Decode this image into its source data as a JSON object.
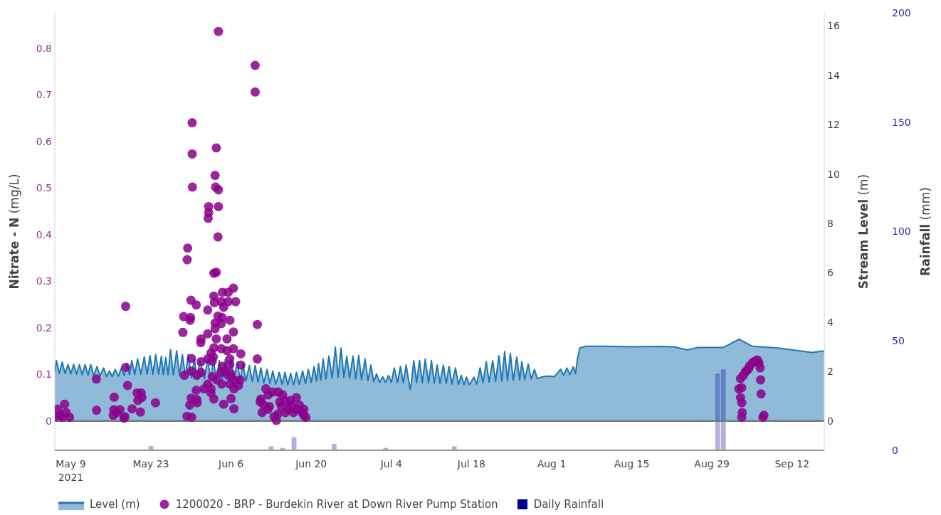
{
  "chart_data": {
    "type": "scatter",
    "ylabel": "Nitrate - N (mg/L)",
    "y2label": "Stream Level (m)",
    "y3label": "Rainfall (mm)",
    "xlim": [
      "2021-05-06T05:00",
      "2021-09-17T15:00"
    ],
    "xticks": [
      {
        "value": "2021-05-09",
        "label": "May 9\n2021"
      },
      {
        "value": "2021-05-23",
        "label": "May 23"
      },
      {
        "value": "2021-06-06",
        "label": "Jun 6"
      },
      {
        "value": "2021-06-20",
        "label": "Jun 20"
      },
      {
        "value": "2021-07-04",
        "label": "Jul 4"
      },
      {
        "value": "2021-07-18",
        "label": "Jul 18"
      },
      {
        "value": "2021-08-01",
        "label": "Aug 1"
      },
      {
        "value": "2021-08-15",
        "label": "Aug 15"
      },
      {
        "value": "2021-08-29",
        "label": "Aug 29"
      },
      {
        "value": "2021-09-12",
        "label": "Sep 12"
      }
    ],
    "ylim": [
      -0.063,
      0.876
    ],
    "yticks": [
      0,
      0.1,
      0.2,
      0.3,
      0.4,
      0.5,
      0.6,
      0.7,
      0.8
    ],
    "y2lim": [
      -1.18,
      16.52
    ],
    "y2ticks": [
      0,
      2,
      4,
      6,
      8,
      10,
      12,
      14,
      16
    ],
    "y3lim": [
      0,
      200
    ],
    "y3ticks": [
      0,
      50,
      100,
      150,
      200
    ],
    "legend": "bottom",
    "ref_lines": [
      {
        "axis": "y",
        "value": 0,
        "color": "#777777"
      }
    ],
    "series": [
      {
        "type": "area",
        "name": "Level (m)",
        "color": "#1f77b4",
        "axis": "y2",
        "x": [
          "2021-05-06T05:00",
          "2021-05-06T12:00",
          "2021-05-07T00:00",
          "2021-05-07T12:00",
          "2021-05-08T00:00",
          "2021-05-08T12:00",
          "2021-05-09T00:00",
          "2021-05-09T12:00",
          "2021-05-10T00:00",
          "2021-05-10T12:00",
          "2021-05-11T00:00",
          "2021-05-11T12:00",
          "2021-05-12T00:00",
          "2021-05-12T12:00",
          "2021-05-13T00:00",
          "2021-05-13T14:00",
          "2021-05-14T02:00",
          "2021-05-14T18:00",
          "2021-05-15T06:00",
          "2021-05-15T18:00",
          "2021-05-16T06:00",
          "2021-05-16T18:00",
          "2021-05-17T08:00",
          "2021-05-17T20:00",
          "2021-05-18T08:00",
          "2021-05-18T20:00",
          "2021-05-19T06:00",
          "2021-05-19T16:00",
          "2021-05-20T04:00",
          "2021-05-20T16:00",
          "2021-05-21T06:00",
          "2021-05-21T20:00",
          "2021-05-22T08:00",
          "2021-05-22T20:00",
          "2021-05-23T08:00",
          "2021-05-23T20:00",
          "2021-05-24T08:00",
          "2021-05-24T20:00",
          "2021-05-25T04:00",
          "2021-05-25T14:00",
          "2021-05-26T00:00",
          "2021-05-26T10:00",
          "2021-05-26T22:00",
          "2021-05-27T12:00",
          "2021-05-28T00:00",
          "2021-05-28T12:00",
          "2021-05-29T00:00",
          "2021-05-29T12:00",
          "2021-05-30T02:00",
          "2021-05-30T14:00",
          "2021-05-31T02:00",
          "2021-05-31T14:00",
          "2021-06-01T08:00",
          "2021-06-01T22:00",
          "2021-06-02T10:00",
          "2021-06-02T22:00",
          "2021-06-03T10:00",
          "2021-06-03T23:00",
          "2021-06-04T12:00",
          "2021-06-05T00:00",
          "2021-06-05T12:00",
          "2021-06-06T00:00",
          "2021-06-06T12:00",
          "2021-06-07T02:00",
          "2021-06-07T14:00",
          "2021-06-08T02:00",
          "2021-06-08T14:00",
          "2021-06-09T05:00",
          "2021-06-09T17:00",
          "2021-06-10T05:00",
          "2021-06-10T17:00",
          "2021-06-11T05:00",
          "2021-06-11T17:00",
          "2021-06-12T07:00",
          "2021-06-12T19:00",
          "2021-06-13T07:00",
          "2021-06-13T19:00",
          "2021-06-14T10:00",
          "2021-06-14T22:00",
          "2021-06-15T10:00",
          "2021-06-15T22:00",
          "2021-06-16T10:00",
          "2021-06-16T22:00",
          "2021-06-17T10:00",
          "2021-06-17T22:00",
          "2021-06-18T12:00",
          "2021-06-19T00:00",
          "2021-06-19T12:00",
          "2021-06-20T00:00",
          "2021-06-20T12:00",
          "2021-06-20T22:00",
          "2021-06-21T07:00",
          "2021-06-21T16:00",
          "2021-06-22T02:00",
          "2021-06-22T14:00",
          "2021-06-23T02:00",
          "2021-06-23T16:00",
          "2021-06-24T05:00",
          "2021-06-24T17:00",
          "2021-06-25T05:00",
          "2021-06-25T17:00",
          "2021-06-26T05:00",
          "2021-06-26T17:00",
          "2021-06-27T07:00",
          "2021-06-27T19:00",
          "2021-06-28T07:00",
          "2021-06-28T19:00",
          "2021-06-29T10:00",
          "2021-06-29T22:00",
          "2021-06-30T10:00",
          "2021-06-30T22:00",
          "2021-07-01T10:00",
          "2021-07-01T22:00",
          "2021-07-02T12:00",
          "2021-07-03T00:00",
          "2021-07-03T12:00",
          "2021-07-04T00:00",
          "2021-07-04T12:00",
          "2021-07-05T02:00",
          "2021-07-05T14:00",
          "2021-07-06T02:00",
          "2021-07-06T14:00",
          "2021-07-07T02:00",
          "2021-07-07T07:00",
          "2021-07-07T12:00",
          "2021-07-07T22:00",
          "2021-07-08T10:00",
          "2021-07-08T22:00",
          "2021-07-09T10:00",
          "2021-07-09T22:00",
          "2021-07-10T12:00",
          "2021-07-11T00:00",
          "2021-07-11T12:00",
          "2021-07-12T00:00",
          "2021-07-12T12:00",
          "2021-07-13T02:00",
          "2021-07-13T14:00",
          "2021-07-14T02:00",
          "2021-07-14T14:00",
          "2021-07-15T05:00",
          "2021-07-15T17:00",
          "2021-07-16T05:00",
          "2021-07-16T17:00",
          "2021-07-17T03:00",
          "2021-07-17T15:00",
          "2021-07-18T10:00",
          "2021-07-18T22:00",
          "2021-07-19T12:00",
          "2021-07-20T00:00",
          "2021-07-20T14:00",
          "2021-07-21T02:00",
          "2021-07-21T17:00",
          "2021-07-22T05:00",
          "2021-07-22T19:00",
          "2021-07-23T07:00",
          "2021-07-23T19:00",
          "2021-07-24T07:00",
          "2021-07-24T19:00",
          "2021-07-25T07:00",
          "2021-07-25T22:00",
          "2021-07-26T10:00",
          "2021-07-26T19:00",
          "2021-07-27T07:00",
          "2021-07-27T22:00",
          "2021-07-28T10:00",
          "2021-07-29T00:00",
          "2021-07-29T12:00",
          "2021-07-30T12:00",
          "2021-07-31T12:00",
          "2021-08-01T12:00",
          "2021-08-02T14:00",
          "2021-08-03T02:00",
          "2021-08-03T16:00",
          "2021-08-04T04:00",
          "2021-08-04T19:00",
          "2021-08-05T04:00",
          "2021-08-05T12:00",
          "2021-08-05T22:00",
          "2021-08-07T00:00",
          "2021-08-10T00:00",
          "2021-08-15T00:00",
          "2021-08-20T00:00",
          "2021-08-22T12:00",
          "2021-08-24T18:00",
          "2021-08-26T12:00",
          "2021-08-31T00:00",
          "2021-09-02T18:00",
          "2021-09-05T00:00",
          "2021-09-09T12:00",
          "2021-09-15T12:00",
          "2021-09-17T15:00"
        ],
        "values": [
          1.97,
          2.45,
          1.93,
          2.39,
          1.92,
          2.29,
          1.91,
          2.29,
          1.9,
          2.29,
          1.88,
          2.29,
          1.86,
          2.29,
          1.84,
          2.21,
          1.82,
          2.15,
          1.8,
          2.03,
          1.8,
          2.09,
          1.82,
          2.15,
          1.85,
          2.33,
          1.87,
          2.45,
          1.88,
          2.51,
          1.9,
          2.6,
          1.9,
          2.65,
          1.9,
          2.69,
          1.9,
          2.63,
          1.88,
          2.57,
          1.87,
          2.89,
          1.86,
          2.84,
          1.84,
          2.69,
          1.8,
          2.69,
          1.76,
          2.51,
          1.73,
          2.45,
          1.71,
          2.51,
          1.7,
          2.45,
          1.69,
          2.45,
          1.68,
          2.51,
          1.67,
          2.51,
          1.66,
          2.39,
          1.64,
          2.33,
          1.62,
          2.25,
          1.6,
          2.25,
          1.57,
          2.15,
          1.54,
          2.09,
          1.51,
          2.03,
          1.49,
          1.97,
          1.48,
          1.97,
          1.47,
          1.93,
          1.47,
          1.97,
          1.49,
          2.03,
          1.52,
          2.09,
          1.57,
          2.21,
          1.62,
          2.33,
          1.66,
          2.51,
          1.7,
          2.63,
          1.74,
          2.99,
          1.77,
          2.96,
          1.76,
          2.63,
          1.74,
          2.63,
          1.71,
          2.66,
          1.67,
          2.51,
          1.63,
          2.27,
          1.59,
          1.91,
          1.57,
          1.79,
          1.56,
          1.85,
          1.56,
          2.15,
          1.56,
          2.21,
          1.55,
          2.27,
          1.55,
          1.28,
          1.55,
          2.45,
          1.55,
          2.45,
          1.55,
          2.51,
          1.55,
          2.45,
          1.54,
          2.27,
          1.53,
          2.27,
          1.52,
          2.21,
          1.5,
          2.15,
          1.48,
          1.85,
          1.47,
          1.78,
          1.47,
          1.78,
          1.5,
          2.15,
          1.55,
          2.4,
          1.58,
          2.44,
          1.6,
          2.65,
          1.62,
          2.81,
          1.63,
          2.74,
          1.65,
          2.59,
          1.66,
          2.4,
          1.68,
          2.3,
          1.7,
          2.09,
          1.72,
          1.8,
          1.82,
          1.8,
          2.1,
          1.85,
          2.15,
          1.88,
          2.2,
          1.92,
          2.5,
          2.96,
          3.03,
          3.03,
          3.01,
          3.02,
          3.0,
          2.88,
          2.98,
          2.98,
          3.31,
          3.03,
          2.96,
          2.78,
          2.84
        ]
      },
      {
        "name": "1200020 - BRP - Burdekin River at Down River Pump Station",
        "color": "#8b008b",
        "marker": "circle",
        "x": [
          "2021-05-06T07:00",
          "2021-05-06T17:00",
          "2021-05-07T05:00",
          "2021-05-07T12:00",
          "2021-05-07T22:00",
          "2021-05-08T05:00",
          "2021-05-08T19:00",
          "2021-05-13T11:00",
          "2021-05-13T12:00",
          "2021-05-16T14:00",
          "2021-05-16T12:00",
          "2021-05-16T10:00",
          "2021-05-17T02:00",
          "2021-05-17T14:00",
          "2021-05-18T07:00",
          "2021-05-18T11:00",
          "2021-05-18T14:00",
          "2021-05-18T14:00",
          "2021-05-18T22:00",
          "2021-05-19T17:00",
          "2021-05-20T14:00",
          "2021-05-20T17:00",
          "2021-05-21T07:00",
          "2021-05-21T10:00",
          "2021-05-21T04:00",
          "2021-05-23T19:00",
          "2021-05-28T17:00",
          "2021-05-28T14:00",
          "2021-05-28T20:00",
          "2021-05-29T10:00",
          "2021-05-29T08:00",
          "2021-05-29T19:00",
          "2021-05-29T07:00",
          "2021-05-30T00:00",
          "2021-05-30T02:00",
          "2021-05-30T01:00",
          "2021-05-29T22:00",
          "2021-05-29T20:00",
          "2021-05-30T05:00",
          "2021-05-30T05:00",
          "2021-05-30T06:00",
          "2021-05-30T02:00",
          "2021-05-30T03:00",
          "2021-05-30T22:00",
          "2021-05-30T22:00",
          "2021-05-31T00:00",
          "2021-05-31T00:00",
          "2021-05-31T02:00",
          "2021-05-31T18:00",
          "2021-05-31T17:00",
          "2021-05-31T18:00",
          "2021-05-31T18:00",
          "2021-06-01T07:00",
          "2021-06-01T22:00",
          "2021-06-01T22:00",
          "2021-06-01T22:00",
          "2021-06-01T22:00",
          "2021-06-02T02:00",
          "2021-06-02T02:00",
          "2021-06-02T00:00",
          "2021-06-02T12:00",
          "2021-06-02T12:00",
          "2021-06-02T12:00",
          "2021-06-02T17:00",
          "2021-06-02T17:00",
          "2021-06-02T22:00",
          "2021-06-03T00:00",
          "2021-06-03T00:00",
          "2021-06-03T00:00",
          "2021-06-03T00:00",
          "2021-06-03T02:00",
          "2021-06-03T05:00",
          "2021-06-03T05:00",
          "2021-06-03T05:00",
          "2021-06-03T10:00",
          "2021-06-03T07:00",
          "2021-06-03T10:00",
          "2021-06-03T10:00",
          "2021-06-03T12:00",
          "2021-06-03T17:00",
          "2021-06-03T19:00",
          "2021-06-03T19:00",
          "2021-06-03T19:00",
          "2021-06-03T17:00",
          "2021-06-04T07:00",
          "2021-06-04T10:00",
          "2021-06-04T07:00",
          "2021-06-04T07:00",
          "2021-06-04T05:00",
          "2021-06-04T09:00",
          "2021-06-04T12:00",
          "2021-06-04T12:00",
          "2021-06-04T17:00",
          "2021-06-04T17:00",
          "2021-06-05T00:00",
          "2021-06-05T07:00",
          "2021-06-05T07:00",
          "2021-06-05T12:00",
          "2021-06-05T12:00",
          "2021-06-05T12:00",
          "2021-06-05T19:00",
          "2021-06-05T19:00",
          "2021-06-05T19:00",
          "2021-06-05T19:00",
          "2021-06-06T00:00",
          "2021-06-06T00:00",
          "2021-06-06T10:00",
          "2021-06-06T10:00",
          "2021-06-06T10:00",
          "2021-06-06T12:00",
          "2021-06-06T12:00",
          "2021-06-06T12:00",
          "2021-06-06T19:00",
          "2021-06-07T07:00",
          "2021-06-07T17:00",
          "2021-06-07T17:00",
          "2021-06-07T14:00",
          "2021-06-10T05:00",
          "2021-06-10T05:00",
          "2021-06-10T14:00",
          "2021-06-10T14:00",
          "2021-06-11T05:00",
          "2021-06-11T02:00",
          "2021-06-11T10:00",
          "2021-06-11T17:00",
          "2021-06-12T02:00",
          "2021-06-12T12:00",
          "2021-06-12T10:00",
          "2021-06-12T17:00",
          "2021-06-13T05:00",
          "2021-06-13T12:00",
          "2021-06-13T22:00",
          "2021-06-14T05:00",
          "2021-06-14T05:00",
          "2021-06-14T12:00",
          "2021-06-14T19:00",
          "2021-06-15T00:00",
          "2021-06-15T12:00",
          "2021-06-15T10:00",
          "2021-06-16T00:00",
          "2021-06-16T10:00",
          "2021-06-16T12:00",
          "2021-06-16T22:00",
          "2021-06-17T10:00",
          "2021-06-17T10:00",
          "2021-06-17T22:00",
          "2021-06-18T10:00",
          "2021-06-18T17:00",
          "2021-06-18T17:00",
          "2021-06-19T02:00",
          "2021-09-02T17:00",
          "2021-09-03T00:00",
          "2021-09-03T00:00",
          "2021-09-03T05:00",
          "2021-09-03T05:00",
          "2021-09-03T07:00",
          "2021-09-03T05:00",
          "2021-09-03T12:00",
          "2021-09-03T20:00",
          "2021-09-04T02:00",
          "2021-09-04T10:00",
          "2021-09-04T14:00",
          "2021-09-05T02:00",
          "2021-09-05T12:00",
          "2021-09-05T22:00",
          "2021-09-06T05:00",
          "2021-09-06T10:00",
          "2021-09-06T12:00",
          "2021-09-06T14:00",
          "2021-09-07T02:00",
          "2021-09-06T22:00"
        ],
        "values": [
          0.009,
          0.025,
          0.012,
          0.008,
          0.036,
          0.018,
          0.008,
          0.09,
          0.023,
          0.051,
          0.024,
          0.012,
          0.018,
          0.024,
          0.006,
          0.009,
          0.246,
          0.115,
          0.076,
          0.026,
          0.06,
          0.044,
          0.06,
          0.05,
          0.019,
          0.039,
          0.224,
          0.19,
          0.098,
          0.371,
          0.346,
          0.034,
          0.01,
          0.259,
          0.134,
          0.049,
          0.222,
          0.216,
          0.64,
          0.573,
          0.502,
          0.107,
          0.008,
          0.249,
          0.066,
          0.098,
          0.046,
          0.039,
          0.176,
          0.168,
          0.127,
          0.104,
          0.069,
          0.238,
          0.187,
          0.133,
          0.079,
          0.46,
          0.447,
          0.435,
          0.146,
          0.069,
          0.06,
          0.128,
          0.095,
          0.137,
          0.317,
          0.268,
          0.157,
          0.047,
          0.254,
          0.527,
          0.21,
          0.198,
          0.586,
          0.502,
          0.319,
          0.176,
          0.088,
          0.225,
          0.836,
          0.496,
          0.46,
          0.395,
          0.256,
          0.222,
          0.209,
          0.155,
          0.104,
          0.079,
          0.276,
          0.117,
          0.244,
          0.036,
          0.107,
          0.176,
          0.151,
          0.276,
          0.256,
          0.098,
          0.216,
          0.133,
          0.121,
          0.079,
          0.101,
          0.048,
          0.285,
          0.191,
          0.155,
          0.088,
          0.069,
          0.026,
          0.256,
          0.076,
          0.144,
          0.12,
          0.088,
          0.763,
          0.706,
          0.207,
          0.133,
          0.047,
          0.041,
          0.018,
          0.034,
          0.069,
          0.056,
          0.025,
          0.031,
          0.062,
          0.009,
          0.001,
          0.062,
          0.015,
          0.041,
          0.031,
          0.056,
          0.018,
          0.044,
          0.025,
          0.044,
          0.034,
          0.018,
          0.05,
          0.025,
          0.034,
          0.018,
          0.025,
          0.012,
          0.008,
          0.069,
          0.091,
          0.05,
          0.071,
          0.039,
          0.018,
          0.008,
          0.098,
          0.105,
          0.108,
          0.112,
          0.118,
          0.125,
          0.128,
          0.131,
          0.125,
          0.114,
          0.088,
          0.058,
          0.012,
          0.008
        ]
      },
      {
        "type": "bar",
        "name": "Daily Rainfall",
        "color": "#00008b",
        "axis": "y3",
        "x": [
          "2021-05-23",
          "2021-06-13",
          "2021-06-15",
          "2021-06-17",
          "2021-06-24",
          "2021-07-03",
          "2021-07-15",
          "2021-08-30",
          "2021-08-31"
        ],
        "values": [
          2,
          1.8,
          1.1,
          6,
          2.9,
          1.1,
          1.8,
          35,
          37
        ]
      }
    ]
  }
}
